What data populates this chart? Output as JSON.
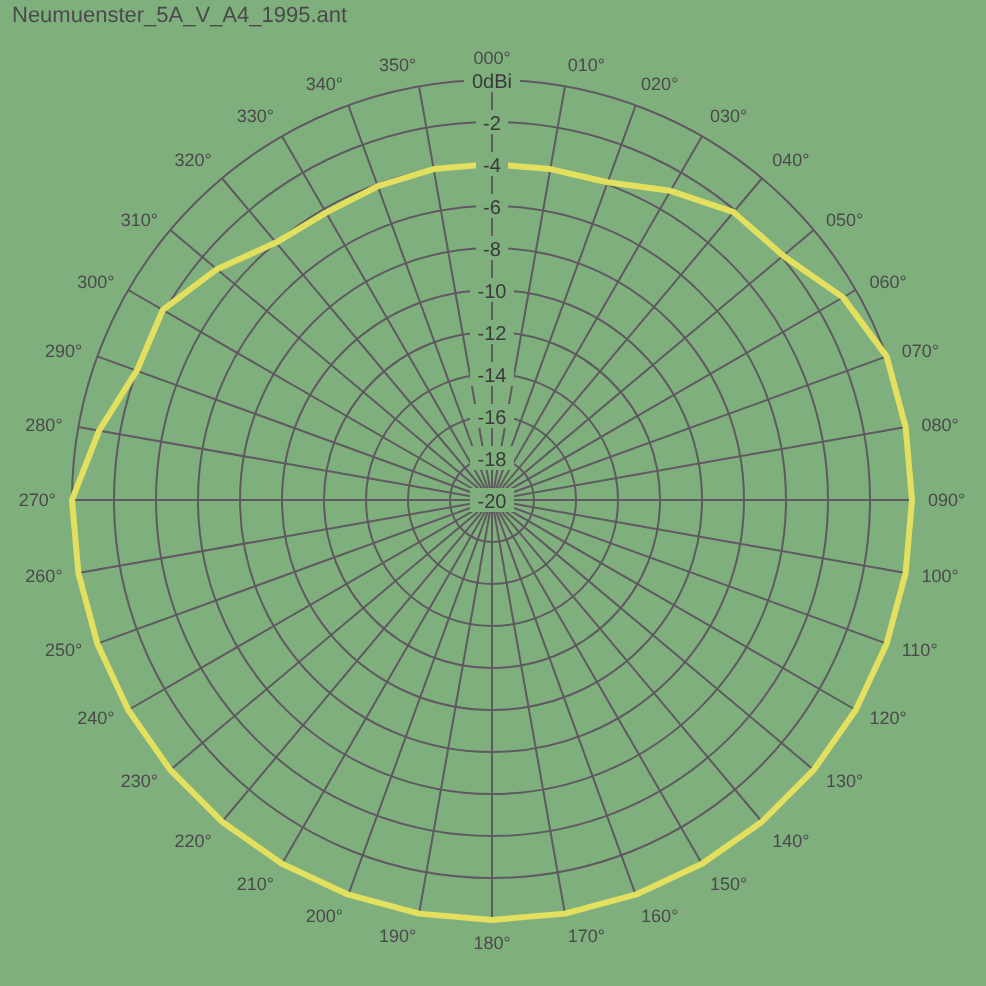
{
  "chart_data": {
    "type": "radar",
    "title": "Neumuenster_5A_V_A4_1995.ant",
    "categories": [
      "000°",
      "010°",
      "020°",
      "030°",
      "040°",
      "050°",
      "060°",
      "070°",
      "080°",
      "090°",
      "100°",
      "110°",
      "120°",
      "130°",
      "140°",
      "150°",
      "160°",
      "170°",
      "180°",
      "190°",
      "200°",
      "210°",
      "220°",
      "230°",
      "240°",
      "250°",
      "260°",
      "270°",
      "280°",
      "290°",
      "300°",
      "310°",
      "320°",
      "330°",
      "340°",
      "350°"
    ],
    "series": [
      {
        "color": "#e3e060",
        "values": [
          -4.0,
          -4.0,
          -3.9,
          -3.0,
          -2.1,
          -1.9,
          -0.7,
          0,
          0,
          0,
          0,
          0,
          0,
          0,
          0,
          0,
          0,
          0,
          0,
          0,
          0,
          0,
          0,
          0,
          0,
          0,
          0,
          0,
          -1.0,
          -2.0,
          -1.9,
          -2.9,
          -4.0,
          -4.2,
          -4.1,
          -4.0
        ]
      }
    ],
    "ylim": [
      -20,
      0
    ],
    "yticks": [
      -20,
      -18,
      -16,
      -14,
      -12,
      -10,
      -8,
      -6,
      -4,
      -2,
      {
        "value": 0,
        "label": "0dBi"
      }
    ],
    "grid": true
  }
}
